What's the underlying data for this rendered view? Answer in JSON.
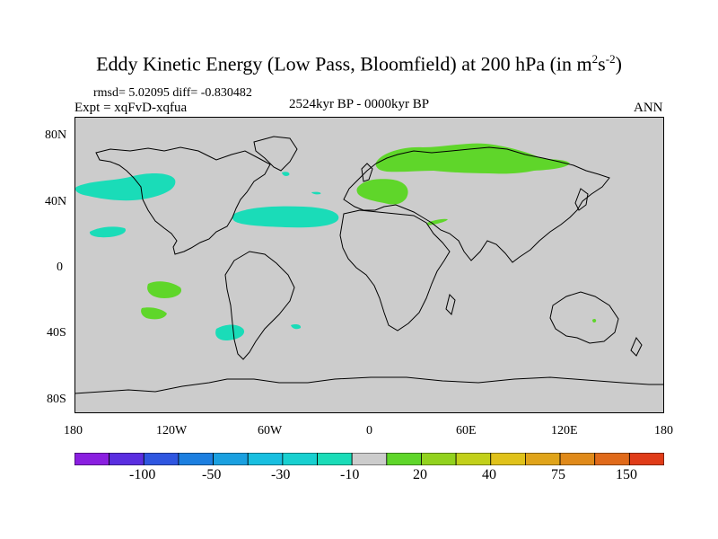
{
  "title": {
    "main": "Eddy Kinetic Energy (Low Pass, Bloomfield) at 200 hPa (in m",
    "sup1": "2",
    "mid": "s",
    "sup2": "-2",
    "end": ")"
  },
  "stats_line": "rmsd= 5.02095 diff= -0.830482",
  "experiment": "Expt = xqFvD-xqfua",
  "period": "2524kyr BP - 0000kyr BP",
  "season": "ANN",
  "axes": {
    "y_ticks": [
      "80N",
      "40N",
      "0",
      "40S",
      "80S"
    ],
    "x_ticks": [
      "180",
      "120W",
      "60W",
      "0",
      "60E",
      "120E",
      "180"
    ]
  },
  "colorbar": {
    "colors": [
      "#8a1fe0",
      "#5a2ee0",
      "#2f56e0",
      "#1c7fe0",
      "#1aa0e0",
      "#18bfe0",
      "#18d0d0",
      "#1adcb8",
      "#cccccc",
      "#5fd62a",
      "#92d21e",
      "#c2d01a",
      "#e0c21a",
      "#e0a41a",
      "#e08a1a",
      "#e06a1a",
      "#e03c18"
    ],
    "labels": [
      "-100",
      "-50",
      "-30",
      "-10",
      "20",
      "40",
      "75",
      "150"
    ]
  },
  "map_data": {
    "background": "#cccccc",
    "regions": [
      {
        "name": "n-pacific-negative",
        "value_range": "-10 to -30",
        "color": "#1adcb8"
      },
      {
        "name": "subtropical-pacific-negative",
        "value_range": "-10 to -30",
        "color": "#1adcb8"
      },
      {
        "name": "n-atlantic-negative",
        "value_range": "-10 to -30",
        "color": "#1adcb8"
      },
      {
        "name": "s-pacific-negative",
        "value_range": "-10 to -30",
        "color": "#1adcb8"
      },
      {
        "name": "eurasia-positive",
        "value_range": "10 to 20",
        "color": "#5fd62a"
      },
      {
        "name": "europe-positive",
        "value_range": "10 to 20",
        "color": "#5fd62a"
      },
      {
        "name": "s-pacific-positive",
        "value_range": "10 to 20",
        "color": "#5fd62a"
      }
    ]
  }
}
